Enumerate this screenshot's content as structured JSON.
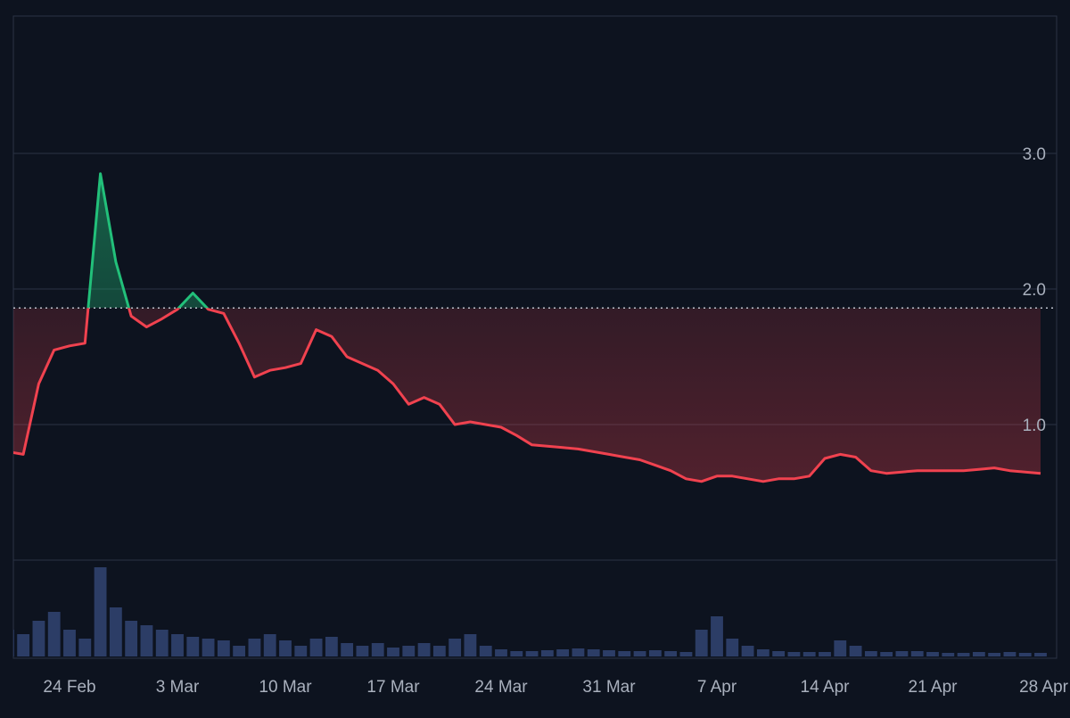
{
  "chart_data": {
    "type": "line",
    "title": "",
    "xlabel": "",
    "ylabel": "",
    "x_tick_labels": [
      "24 Feb",
      "3 Mar",
      "10 Mar",
      "17 Mar",
      "24 Mar",
      "31 Mar",
      "7 Apr",
      "14 Apr",
      "21 Apr",
      "28 Apr"
    ],
    "y_tick_labels": [
      "1.0",
      "2.0",
      "3.0"
    ],
    "y_ticks": [
      1.0,
      2.0,
      3.0
    ],
    "ylim": [
      0.0,
      3.0
    ],
    "baseline": 1.86,
    "grid": true,
    "colors": {
      "above_baseline": "#22c07a",
      "below_baseline": "#f0424f",
      "baseline": "#c9ced8",
      "volume": "#2c3d66",
      "gridline": "#2a3344",
      "background": "#0d131f",
      "tick_text": "#a9b0bd"
    },
    "series": [
      {
        "x": [
          "2025-02-20",
          "2025-02-21",
          "2025-02-22",
          "2025-02-23",
          "2025-02-24",
          "2025-02-25",
          "2025-02-26",
          "2025-02-27",
          "2025-02-28",
          "2025-03-01",
          "2025-03-02",
          "2025-03-03",
          "2025-03-04",
          "2025-03-05",
          "2025-03-06",
          "2025-03-07",
          "2025-03-08",
          "2025-03-09",
          "2025-03-10",
          "2025-03-11",
          "2025-03-12",
          "2025-03-13",
          "2025-03-14",
          "2025-03-15",
          "2025-03-16",
          "2025-03-17",
          "2025-03-18",
          "2025-03-19",
          "2025-03-20",
          "2025-03-21",
          "2025-03-22",
          "2025-03-23",
          "2025-03-24",
          "2025-03-25",
          "2025-03-26",
          "2025-03-27",
          "2025-03-28",
          "2025-03-29",
          "2025-03-30",
          "2025-03-31",
          "2025-04-01",
          "2025-04-02",
          "2025-04-03",
          "2025-04-04",
          "2025-04-05",
          "2025-04-06",
          "2025-04-07",
          "2025-04-08",
          "2025-04-09",
          "2025-04-10",
          "2025-04-11",
          "2025-04-12",
          "2025-04-13",
          "2025-04-14",
          "2025-04-15",
          "2025-04-16",
          "2025-04-17",
          "2025-04-18",
          "2025-04-19",
          "2025-04-20",
          "2025-04-21",
          "2025-04-22",
          "2025-04-23",
          "2025-04-24",
          "2025-04-25",
          "2025-04-26",
          "2025-04-27",
          "2025-04-28"
        ],
        "values": [
          0.8,
          0.78,
          1.3,
          1.55,
          1.58,
          1.6,
          2.85,
          2.2,
          1.8,
          1.72,
          1.78,
          1.85,
          1.97,
          1.85,
          1.82,
          1.6,
          1.35,
          1.4,
          1.42,
          1.45,
          1.7,
          1.65,
          1.5,
          1.45,
          1.4,
          1.3,
          1.15,
          1.2,
          1.15,
          1.0,
          1.02,
          1.0,
          0.98,
          0.92,
          0.85,
          0.84,
          0.83,
          0.82,
          0.8,
          0.78,
          0.76,
          0.74,
          0.7,
          0.66,
          0.6,
          0.58,
          0.62,
          0.62,
          0.6,
          0.58,
          0.6,
          0.6,
          0.62,
          0.75,
          0.78,
          0.76,
          0.66,
          0.64,
          0.65,
          0.66,
          0.66,
          0.66,
          0.66,
          0.67,
          0.68,
          0.66,
          0.65,
          0.64
        ]
      }
    ],
    "volume": {
      "x": [
        "2025-02-20",
        "2025-02-21",
        "2025-02-22",
        "2025-02-23",
        "2025-02-24",
        "2025-02-25",
        "2025-02-26",
        "2025-02-27",
        "2025-02-28",
        "2025-03-01",
        "2025-03-02",
        "2025-03-03",
        "2025-03-04",
        "2025-03-05",
        "2025-03-06",
        "2025-03-07",
        "2025-03-08",
        "2025-03-09",
        "2025-03-10",
        "2025-03-11",
        "2025-03-12",
        "2025-03-13",
        "2025-03-14",
        "2025-03-15",
        "2025-03-16",
        "2025-03-17",
        "2025-03-18",
        "2025-03-19",
        "2025-03-20",
        "2025-03-21",
        "2025-03-22",
        "2025-03-23",
        "2025-03-24",
        "2025-03-25",
        "2025-03-26",
        "2025-03-27",
        "2025-03-28",
        "2025-03-29",
        "2025-03-30",
        "2025-03-31",
        "2025-04-01",
        "2025-04-02",
        "2025-04-03",
        "2025-04-04",
        "2025-04-05",
        "2025-04-06",
        "2025-04-07",
        "2025-04-08",
        "2025-04-09",
        "2025-04-10",
        "2025-04-11",
        "2025-04-12",
        "2025-04-13",
        "2025-04-14",
        "2025-04-15",
        "2025-04-16",
        "2025-04-17",
        "2025-04-18",
        "2025-04-19",
        "2025-04-20",
        "2025-04-21",
        "2025-04-22",
        "2025-04-23",
        "2025-04-24",
        "2025-04-25",
        "2025-04-26",
        "2025-04-27",
        "2025-04-28"
      ],
      "values": [
        0.3,
        0.25,
        0.4,
        0.5,
        0.3,
        0.2,
        1.0,
        0.55,
        0.4,
        0.35,
        0.3,
        0.25,
        0.22,
        0.2,
        0.18,
        0.12,
        0.2,
        0.25,
        0.18,
        0.12,
        0.2,
        0.22,
        0.15,
        0.12,
        0.15,
        0.1,
        0.12,
        0.15,
        0.12,
        0.2,
        0.25,
        0.12,
        0.08,
        0.06,
        0.06,
        0.07,
        0.08,
        0.09,
        0.08,
        0.07,
        0.06,
        0.06,
        0.07,
        0.06,
        0.05,
        0.3,
        0.45,
        0.2,
        0.12,
        0.08,
        0.06,
        0.05,
        0.05,
        0.05,
        0.18,
        0.12,
        0.06,
        0.05,
        0.06,
        0.06,
        0.05,
        0.04,
        0.04,
        0.05,
        0.04,
        0.05,
        0.04,
        0.04
      ]
    }
  }
}
